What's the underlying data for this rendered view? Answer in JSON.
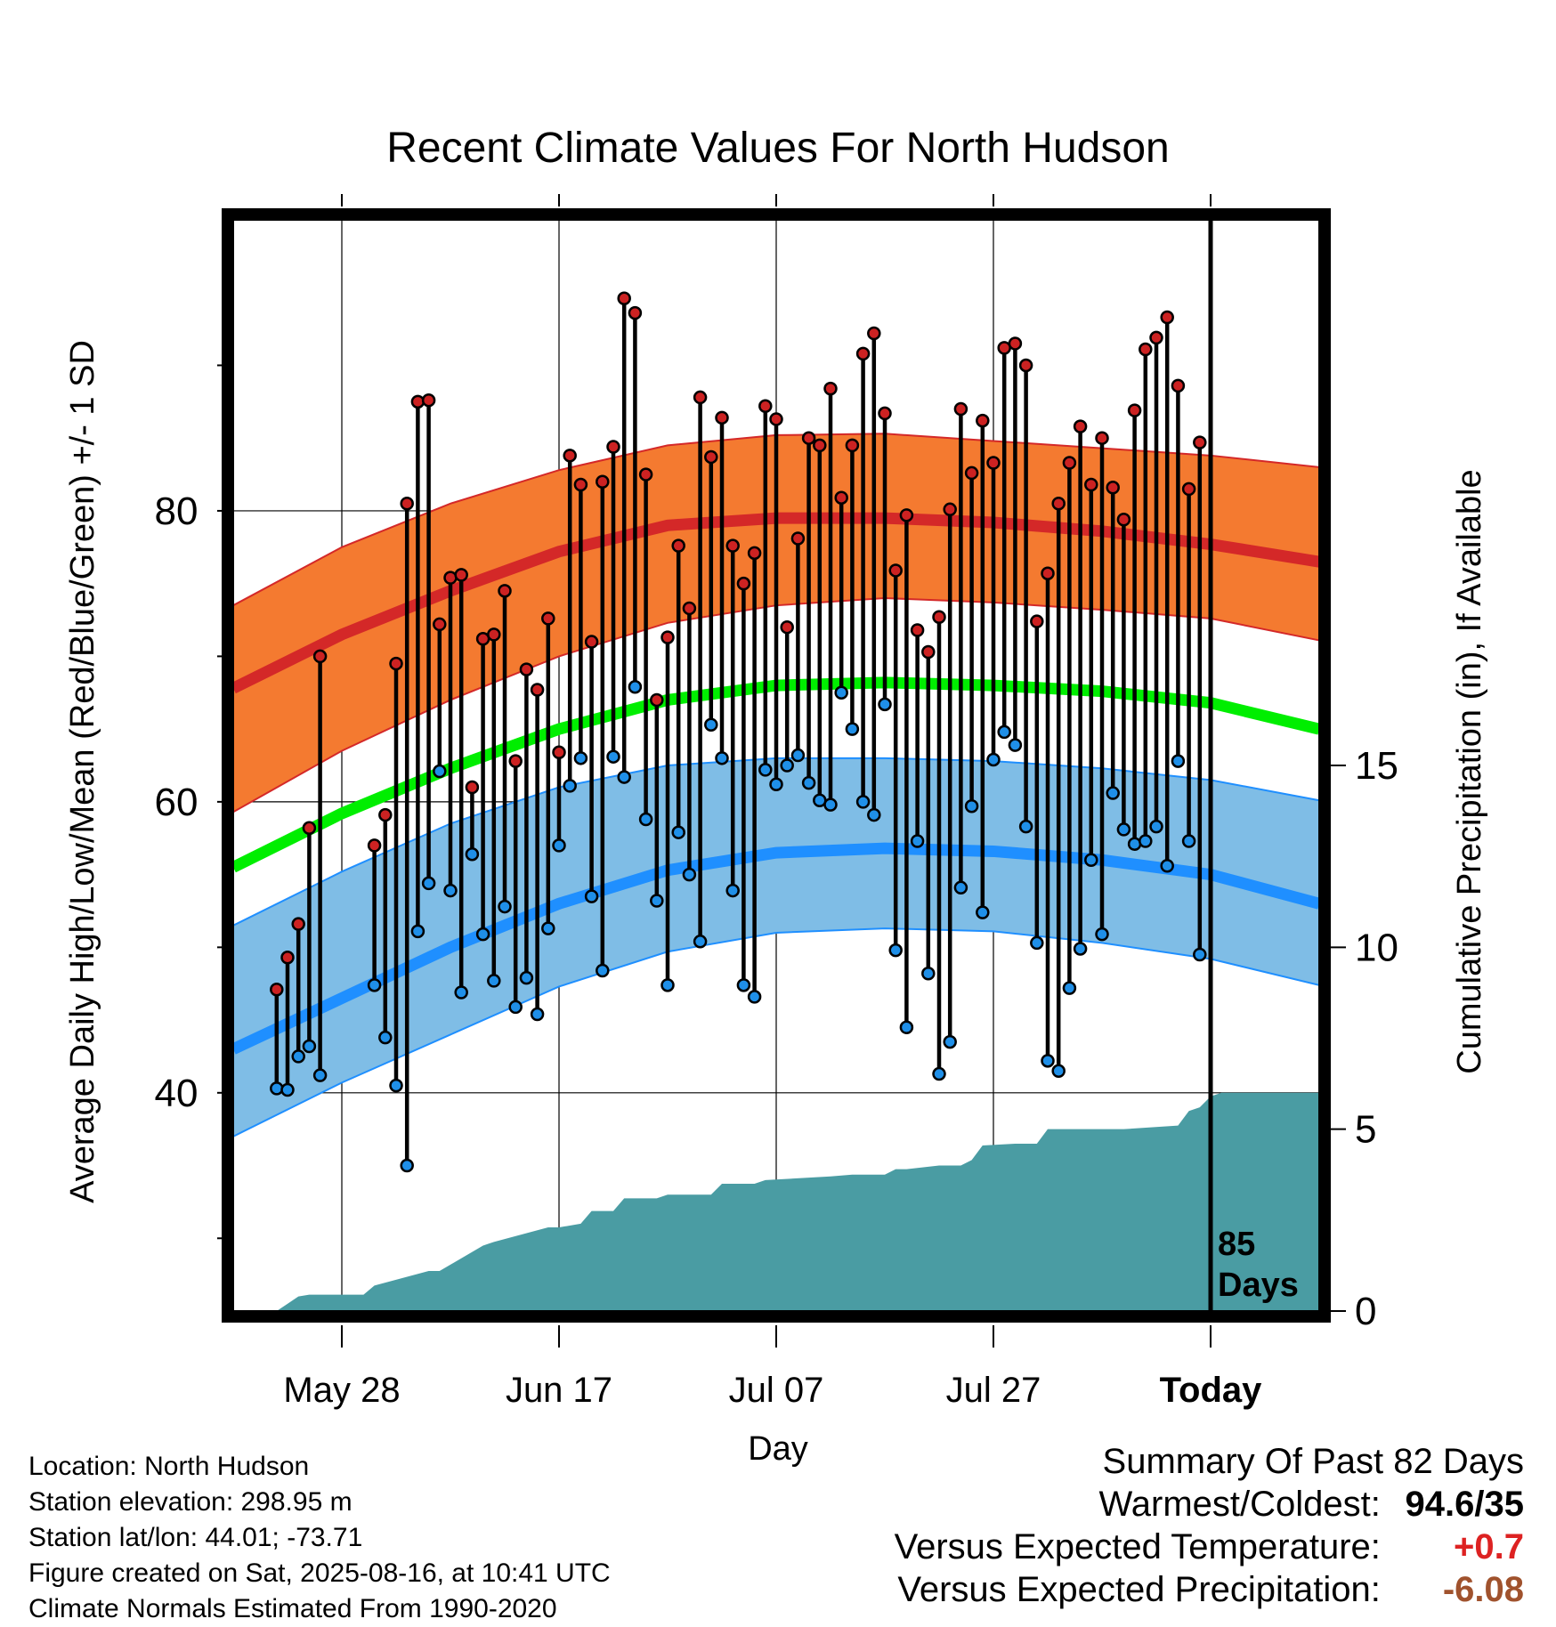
{
  "chart_data": {
    "type": "line",
    "title": "Recent Climate Values For North Hudson",
    "xlabel": "Day",
    "ylabel": "Average Daily High/Low/Mean (Red/Blue/Green) +/- 1 SD",
    "y2label": "Cumulative Precipitation (in), If Available",
    "x_tick_labels": [
      "May 28",
      "Jun 17",
      "Jul 07",
      "Jul 27",
      "Today"
    ],
    "x_tick_days": [
      0,
      20,
      40,
      60,
      80
    ],
    "xlim": [
      -10,
      90
    ],
    "ylim": [
      25,
      100
    ],
    "y_ticks": [
      40,
      60,
      80
    ],
    "y_minor_ticks": [
      30,
      50,
      70,
      90
    ],
    "y2_ticks": [
      0,
      5,
      10,
      15
    ],
    "y2lim": [
      0,
      30
    ],
    "grid": true,
    "today_marker_label": [
      "85",
      "Days"
    ],
    "normals": {
      "days": [
        -10,
        0,
        10,
        20,
        30,
        40,
        50,
        60,
        70,
        80,
        90
      ],
      "high_mean": [
        67.8,
        71.5,
        74.5,
        77.2,
        79,
        79.5,
        79.5,
        79.2,
        78.6,
        77.7,
        76.5
      ],
      "high_upper": [
        73.5,
        77.5,
        80.5,
        82.8,
        84.5,
        85.2,
        85.3,
        84.8,
        84.3,
        83.8,
        83
      ],
      "high_lower": [
        59.3,
        63.5,
        67,
        70,
        72.3,
        73.5,
        74,
        73.7,
        73.2,
        72.6,
        71.1
      ],
      "mean": [
        55.5,
        59.2,
        62.3,
        65,
        67,
        68,
        68.2,
        68,
        67.6,
        66.8,
        65
      ],
      "low_mean": [
        43,
        46.5,
        50,
        53,
        55.3,
        56.5,
        56.8,
        56.6,
        56,
        55,
        53
      ],
      "low_upper": [
        51.5,
        55.2,
        58.5,
        61,
        62.5,
        63,
        63,
        62.8,
        62.3,
        61.5,
        60.1
      ],
      "low_lower": [
        37,
        40.7,
        44,
        47.3,
        49.7,
        51,
        51.3,
        51.1,
        50.3,
        49.2,
        47.4
      ]
    },
    "series": [
      {
        "name": "High",
        "color": "#cc2222",
        "values": [
          47.1,
          49.3,
          51.6,
          58.2,
          70,
          null,
          null,
          null,
          null,
          57,
          59.1,
          69.5,
          80.5,
          87.5,
          87.6,
          72.2,
          75.4,
          75.6,
          61,
          71.2,
          71.5,
          74.5,
          62.8,
          69.1,
          67.7,
          72.6,
          63.4,
          83.8,
          81.8,
          71,
          82,
          84.4,
          94.6,
          93.6,
          82.5,
          67,
          71.3,
          77.6,
          73.3,
          87.8,
          83.7,
          86.4,
          77.6,
          75,
          77.1,
          87.2,
          86.3,
          72,
          78.1,
          85,
          84.5,
          88.4,
          80.9,
          84.5,
          90.8,
          92.2,
          86.7,
          75.9,
          79.7,
          71.8,
          70.3,
          72.7,
          80.1,
          87,
          82.6,
          86.2,
          83.3,
          91.2,
          91.5,
          90,
          72.4,
          75.7,
          80.5,
          83.3,
          85.8,
          81.8,
          85,
          81.6,
          79.4,
          86.9,
          91.1,
          91.9,
          93.3,
          88.6,
          81.5,
          84.7
        ]
      },
      {
        "name": "Low",
        "color": "#1f8fe8",
        "values": [
          40.3,
          40.2,
          42.5,
          43.2,
          41.2,
          null,
          null,
          null,
          null,
          47.4,
          43.8,
          40.5,
          35,
          51.1,
          54.4,
          62.1,
          53.9,
          46.9,
          56.4,
          50.9,
          47.7,
          52.8,
          45.9,
          47.9,
          45.4,
          51.3,
          57,
          61.1,
          63,
          53.5,
          48.4,
          63.1,
          61.7,
          67.9,
          58.8,
          53.2,
          47.4,
          57.9,
          55,
          50.4,
          65.3,
          63,
          53.9,
          47.4,
          46.6,
          62.2,
          61.2,
          62.5,
          63.2,
          61.3,
          60.1,
          59.8,
          67.5,
          65,
          60,
          59.1,
          66.7,
          49.8,
          44.5,
          57.3,
          48.2,
          41.3,
          43.5,
          54.1,
          59.7,
          52.4,
          62.9,
          64.8,
          63.9,
          58.3,
          50.3,
          42.2,
          41.5,
          47.2,
          49.9,
          56,
          50.9,
          60.6,
          58.1,
          57.1,
          57.3,
          58.3,
          55.6,
          62.8,
          57.3,
          49.5
        ]
      }
    ],
    "obs_start_day": -6,
    "precip": {
      "days": [
        -6,
        -5,
        -4,
        -3,
        2,
        3,
        8,
        9,
        13,
        14,
        19,
        20,
        22,
        23,
        25,
        26,
        29,
        30,
        34,
        35,
        38,
        39,
        45,
        47,
        50,
        51,
        52,
        55,
        57,
        58,
        59,
        62,
        64,
        65,
        69,
        70,
        71,
        72,
        77,
        78,
        79,
        80,
        81,
        82,
        90
      ],
      "values": [
        0,
        0.2,
        0.4,
        0.45,
        0.45,
        0.7,
        1.1,
        1.1,
        1.8,
        1.9,
        2.3,
        2.3,
        2.4,
        2.75,
        2.75,
        3.1,
        3.1,
        3.2,
        3.2,
        3.5,
        3.5,
        3.6,
        3.7,
        3.75,
        3.75,
        3.9,
        3.9,
        4,
        4,
        4.15,
        4.55,
        4.6,
        4.6,
        5,
        5,
        5,
        5,
        5,
        5.1,
        5.5,
        5.6,
        5.9,
        6,
        6,
        6
      ]
    }
  },
  "info": {
    "location": "Location: North Hudson",
    "elevation": "Station elevation: 298.95 m",
    "latlon": "Station lat/lon: 44.01; -73.71",
    "created": "Figure created on Sat, 2025-08-16, at 10:41 UTC",
    "normals": "Climate Normals Estimated From 1990-2020"
  },
  "summary": {
    "title": "Summary Of Past 82 Days",
    "warm_cold_label": "Warmest/Coldest:",
    "warm_cold_value": "94.6/35",
    "temp_label": "Versus Expected Temperature:",
    "temp_value": "+0.7",
    "temp_color": "#dd2222",
    "precip_label": "Versus Expected Precipitation:",
    "precip_value": "-6.08",
    "precip_color": "#a0522d"
  },
  "colors": {
    "high_band": "#f47a30",
    "high_line": "#d42828",
    "low_band": "#7fbde6",
    "low_line": "#1f8fff",
    "mean_line": "#00ee00",
    "precip_fill": "#4a9ca3",
    "high_dot": "#cc2222",
    "low_dot": "#1f8fe8"
  }
}
